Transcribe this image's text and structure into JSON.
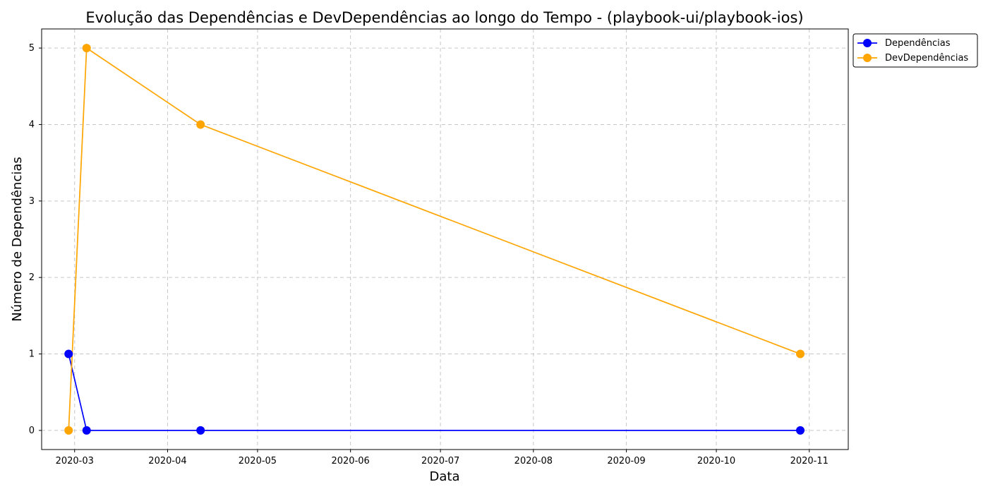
{
  "chart_data": {
    "type": "line",
    "title": "Evolução das Dependências e DevDependências ao longo do Tempo - (playbook-ui/playbook-ios)",
    "xlabel": "Data",
    "ylabel": "Número de Dependências",
    "x_axis": {
      "type": "date",
      "range": [
        "2020-02-19",
        "2020-11-14"
      ],
      "ticks": [
        "2020-03-01",
        "2020-04-01",
        "2020-05-01",
        "2020-06-01",
        "2020-07-01",
        "2020-08-01",
        "2020-09-01",
        "2020-10-01",
        "2020-11-01"
      ],
      "tick_labels": [
        "2020-03",
        "2020-04",
        "2020-05",
        "2020-06",
        "2020-07",
        "2020-08",
        "2020-09",
        "2020-10",
        "2020-11"
      ]
    },
    "y_axis": {
      "range": [
        -0.25,
        5.25
      ],
      "ticks": [
        0,
        1,
        2,
        3,
        4,
        5
      ],
      "tick_labels": [
        "0",
        "1",
        "2",
        "3",
        "4",
        "5"
      ]
    },
    "grid": true,
    "legend_position": "outside-top-right",
    "series": [
      {
        "name": "Dependências",
        "color": "#0000ff",
        "marker": "circle",
        "points": [
          {
            "x": "2020-02-28",
            "y": 1
          },
          {
            "x": "2020-03-05",
            "y": 0
          },
          {
            "x": "2020-04-12",
            "y": 0
          },
          {
            "x": "2020-10-29",
            "y": 0
          }
        ]
      },
      {
        "name": "DevDependências",
        "color": "#ffa500",
        "marker": "circle",
        "points": [
          {
            "x": "2020-02-28",
            "y": 0
          },
          {
            "x": "2020-03-05",
            "y": 5
          },
          {
            "x": "2020-04-12",
            "y": 4
          },
          {
            "x": "2020-10-29",
            "y": 1
          }
        ]
      }
    ]
  }
}
